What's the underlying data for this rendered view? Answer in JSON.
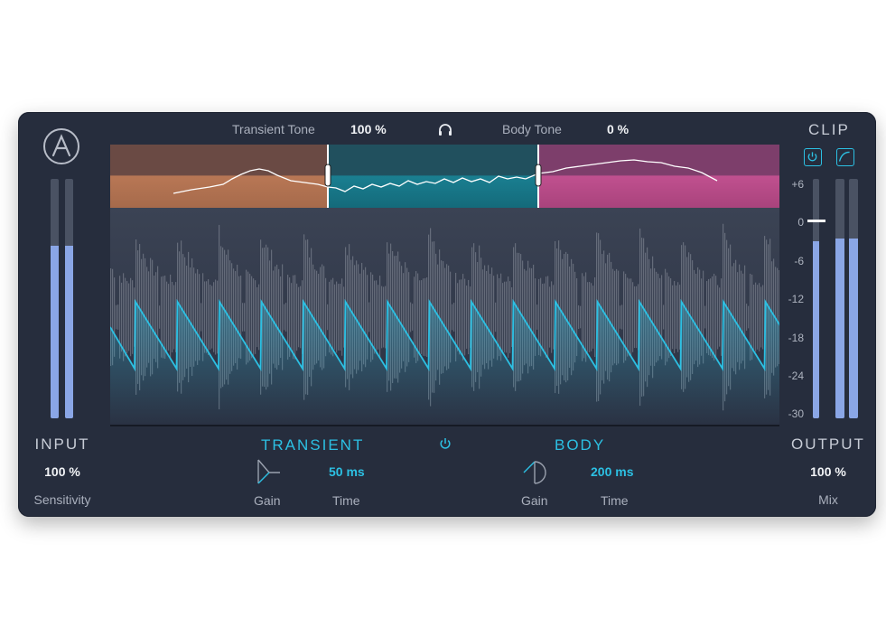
{
  "top_bar": {
    "transient_tone_label": "Transient Tone",
    "transient_tone_value": "100 %",
    "body_tone_label": "Body Tone",
    "body_tone_value": "0 %",
    "headphones_icon": "headphones-icon"
  },
  "clip": {
    "label": "CLIP",
    "power_icon": "power-icon",
    "curve_icon": "curve-icon"
  },
  "input": {
    "label": "INPUT",
    "value": "100 %",
    "param": "Sensitivity",
    "meter_levels": [
      0.72,
      0.72
    ]
  },
  "output": {
    "label": "OUTPUT",
    "value": "100 %",
    "param": "Mix",
    "meter_levels": [
      0.74,
      0.75,
      0.75
    ]
  },
  "db_scale": [
    "+6",
    "0",
    "-6",
    "-12",
    "-18",
    "-24",
    "-30"
  ],
  "transient": {
    "title": "TRANSIENT",
    "gain_label": "Gain",
    "time_value": "50 ms",
    "time_label": "Time"
  },
  "body": {
    "title": "BODY",
    "gain_label": "Gain",
    "time_value": "200 ms",
    "time_label": "Time"
  },
  "colors": {
    "accent": "#2cc0e3",
    "band_low": "#b87755",
    "band_mid": "#1a7f91",
    "band_high": "#c0508f",
    "panel": "#262d3d"
  }
}
